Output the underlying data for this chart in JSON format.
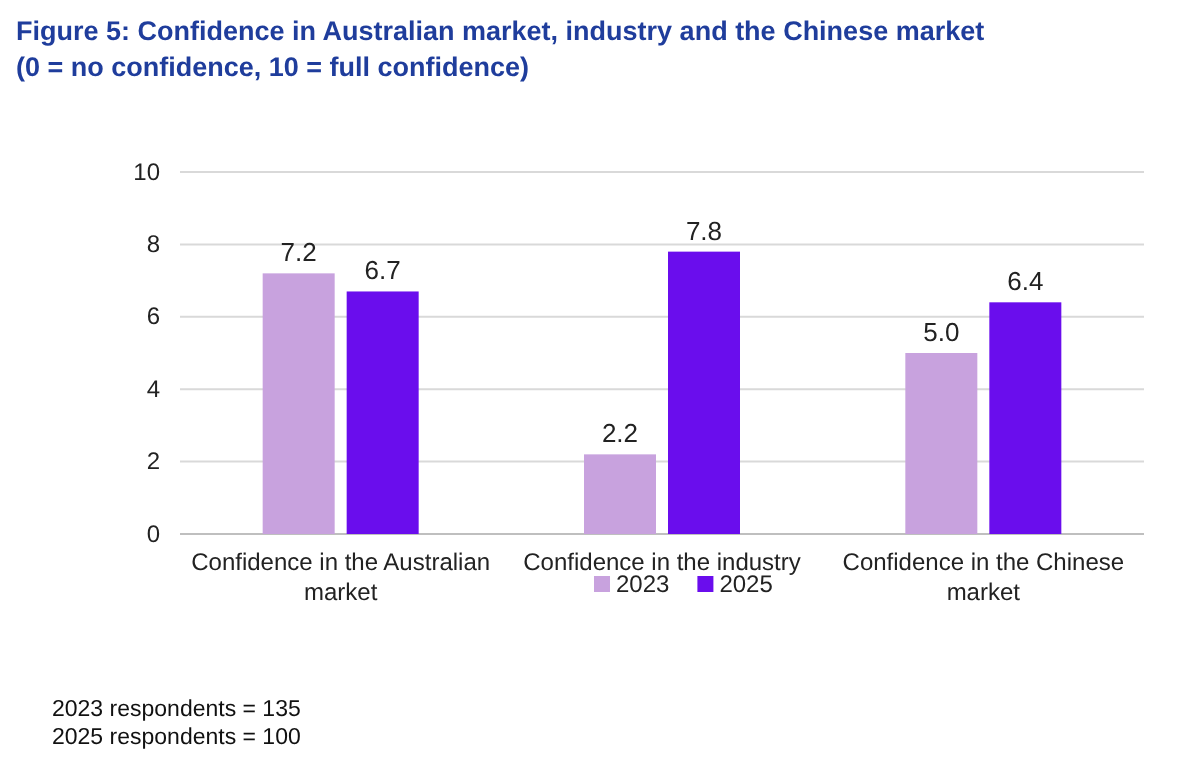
{
  "chart_data": {
    "type": "bar",
    "title": "Figure 5: Confidence in Australian market, industry and the Chinese market",
    "subtitle": "(0 = no confidence, 10 = full confidence)",
    "categories": [
      "Confidence in the Australian market",
      "Confidence in the industry",
      "Confidence in the Chinese market"
    ],
    "series": [
      {
        "name": "2023",
        "color": "#c8a2de",
        "values": [
          7.2,
          2.2,
          5.0
        ]
      },
      {
        "name": "2025",
        "color": "#6a0ded",
        "values": [
          6.7,
          7.8,
          6.4
        ]
      }
    ],
    "value_labels": [
      [
        "7.2",
        "2.2",
        "5.0"
      ],
      [
        "6.7",
        "7.8",
        "6.4"
      ]
    ],
    "ylim": [
      0,
      10
    ],
    "yticks": [
      0,
      2,
      4,
      6,
      8,
      10
    ],
    "grid": "y",
    "legend": "bottom",
    "annotations": [
      "2023 respondents = 135",
      "2025 respondents = 100"
    ]
  }
}
